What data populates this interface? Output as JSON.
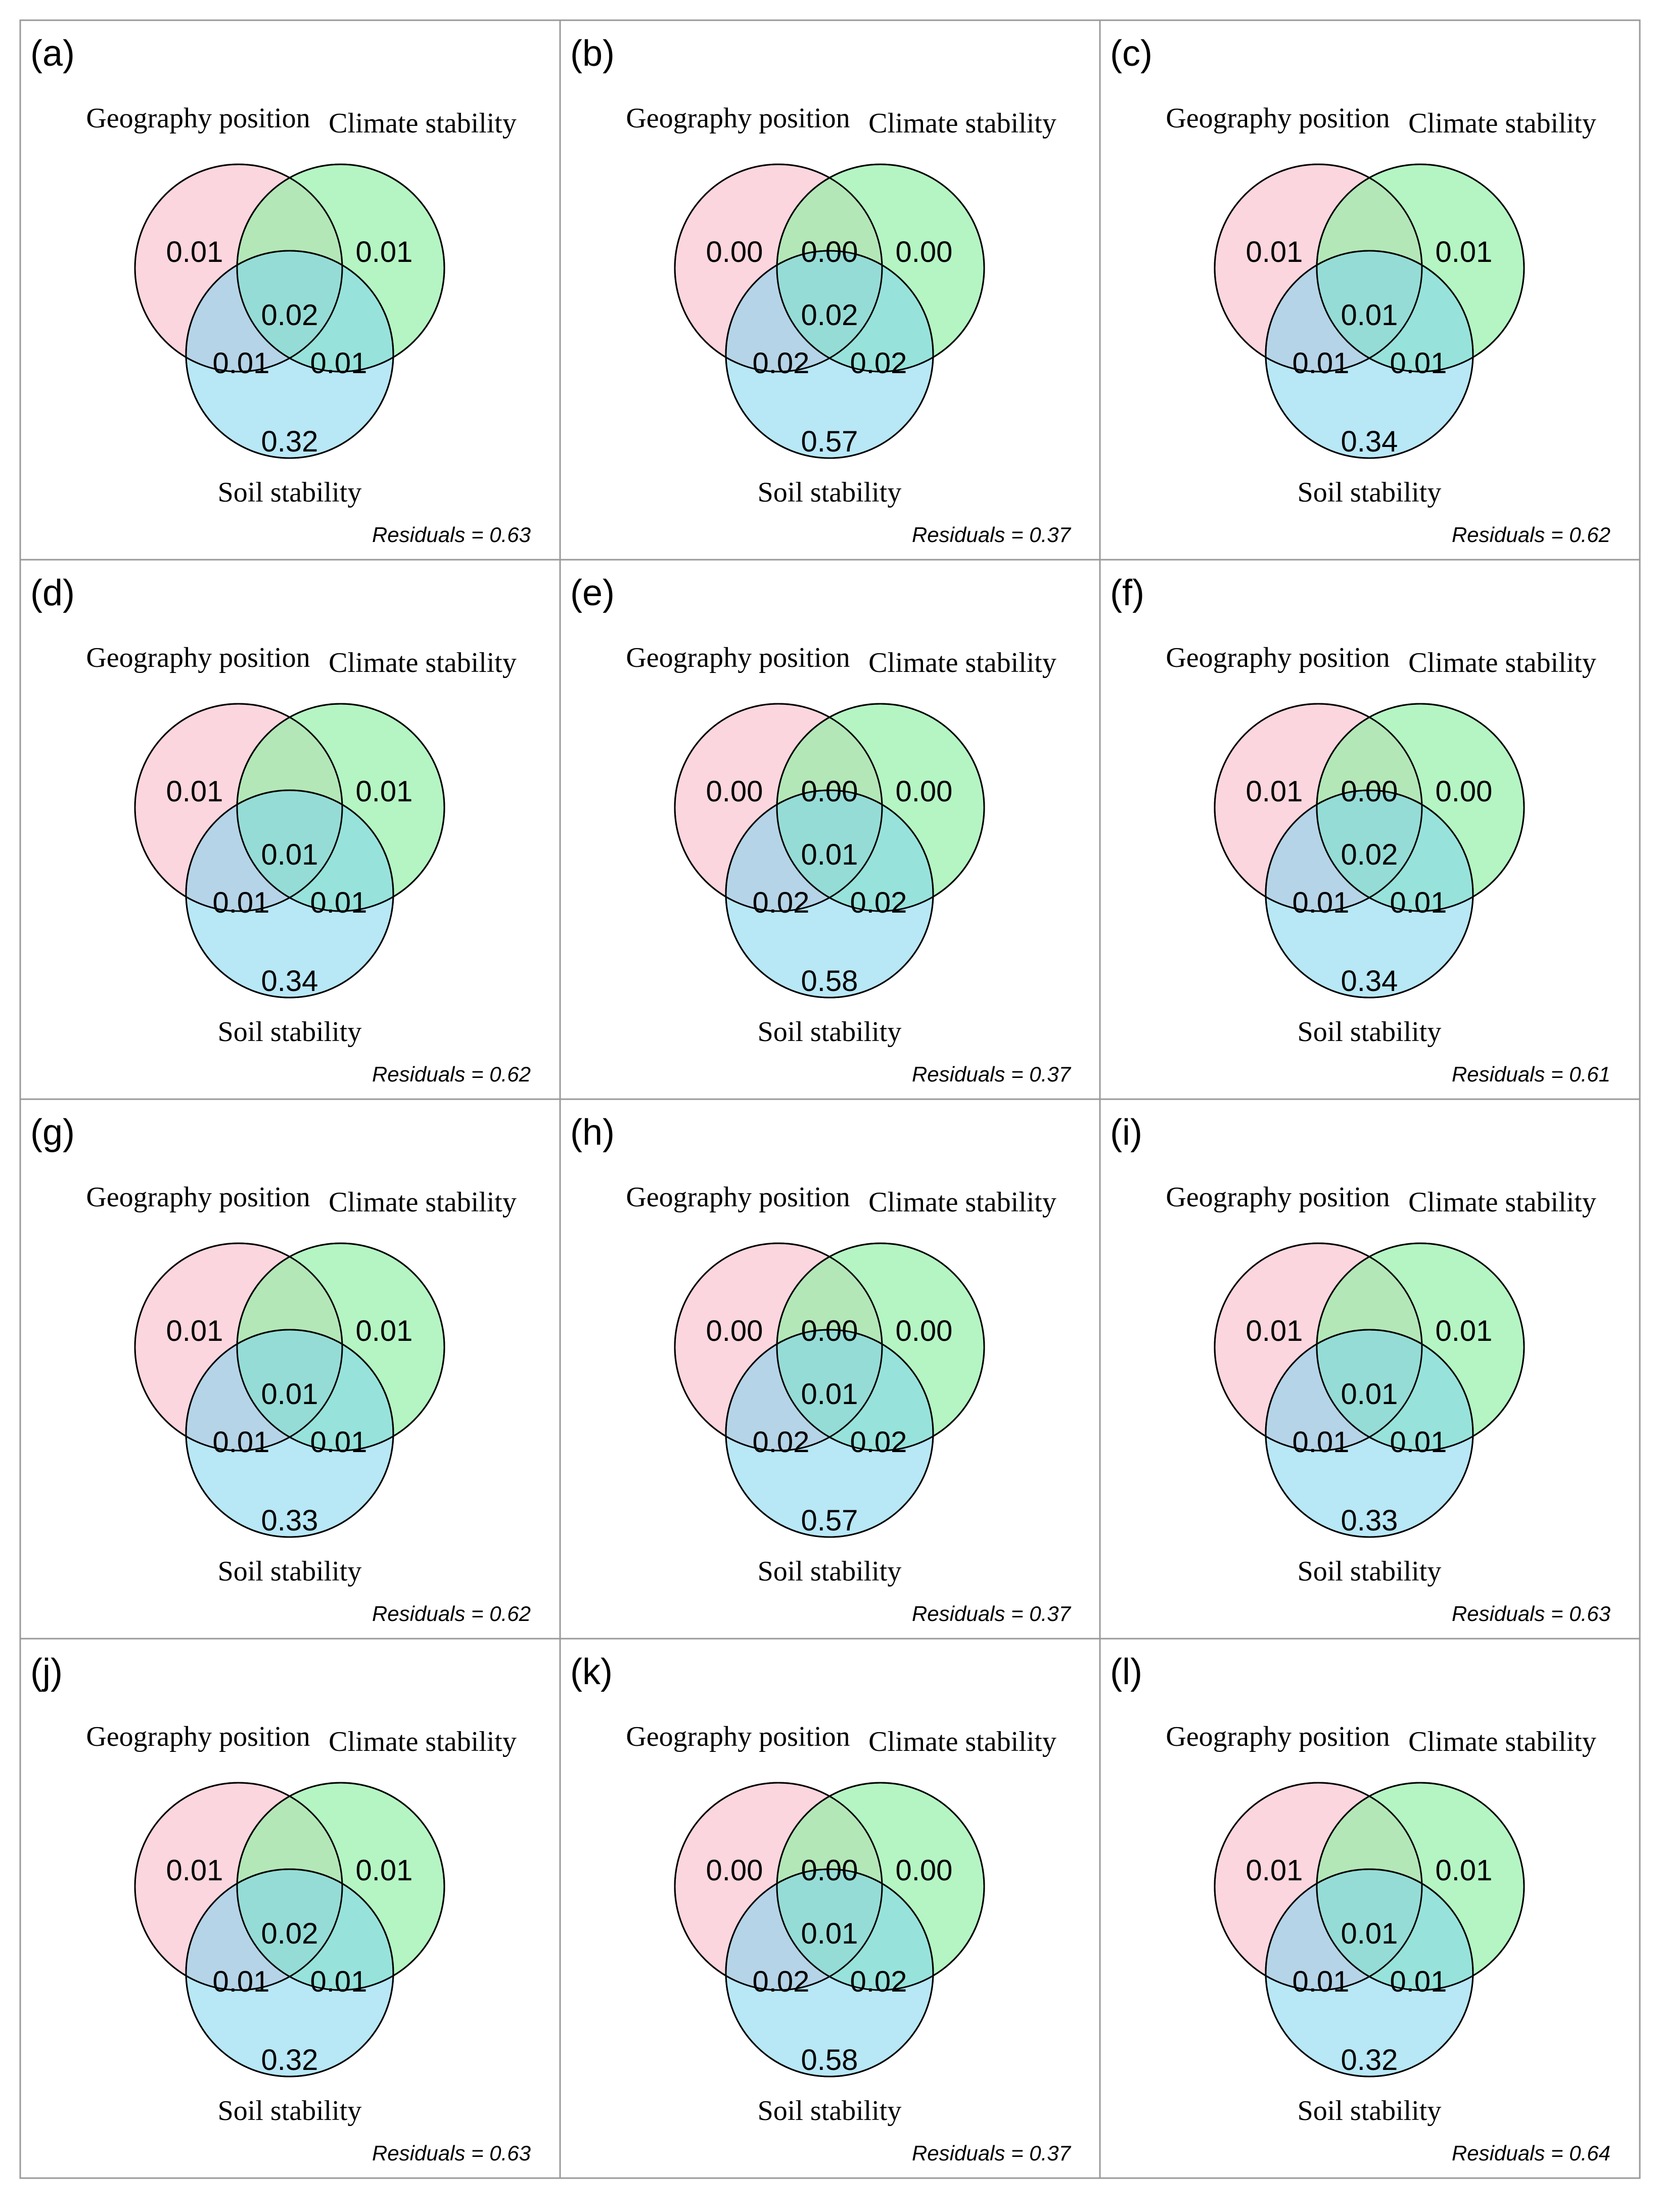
{
  "figure": {
    "set_labels": {
      "geography": "Geography position",
      "climate": "Climate stability",
      "soil": "Soil stability"
    },
    "residuals_prefix": "Residuals = ",
    "colors": {
      "geography": "#f9c8d3",
      "climate": "#8ef0a3",
      "soil": "#7dd3ee",
      "outline": "#000000",
      "grid": "#999999"
    },
    "panels": [
      {
        "label": "(a)",
        "residuals": "0.63",
        "geo_only": "0.01",
        "climate_only": "0.01",
        "geo_climate": "",
        "all_three": "0.02",
        "geo_soil": "0.01",
        "climate_soil": "0.01",
        "soil_only": "0.32"
      },
      {
        "label": "(b)",
        "residuals": "0.37",
        "geo_only": "0.00",
        "climate_only": "0.00",
        "geo_climate": "0.00",
        "all_three": "0.02",
        "geo_soil": "0.02",
        "climate_soil": "0.02",
        "soil_only": "0.57"
      },
      {
        "label": "(c)",
        "residuals": "0.62",
        "geo_only": "0.01",
        "climate_only": "0.01",
        "geo_climate": "",
        "all_three": "0.01",
        "geo_soil": "0.01",
        "climate_soil": "0.01",
        "soil_only": "0.34"
      },
      {
        "label": "(d)",
        "residuals": "0.62",
        "geo_only": "0.01",
        "climate_only": "0.01",
        "geo_climate": "",
        "all_three": "0.01",
        "geo_soil": "0.01",
        "climate_soil": "0.01",
        "soil_only": "0.34"
      },
      {
        "label": "(e)",
        "residuals": "0.37",
        "geo_only": "0.00",
        "climate_only": "0.00",
        "geo_climate": "0.00",
        "all_three": "0.01",
        "geo_soil": "0.02",
        "climate_soil": "0.02",
        "soil_only": "0.58"
      },
      {
        "label": "(f)",
        "residuals": "0.61",
        "geo_only": "0.01",
        "climate_only": "0.00",
        "geo_climate": "0.00",
        "all_three": "0.02",
        "geo_soil": "0.01",
        "climate_soil": "0.01",
        "soil_only": "0.34"
      },
      {
        "label": "(g)",
        "residuals": "0.62",
        "geo_only": "0.01",
        "climate_only": "0.01",
        "geo_climate": "",
        "all_three": "0.01",
        "geo_soil": "0.01",
        "climate_soil": "0.01",
        "soil_only": "0.33"
      },
      {
        "label": "(h)",
        "residuals": "0.37",
        "geo_only": "0.00",
        "climate_only": "0.00",
        "geo_climate": "0.00",
        "all_three": "0.01",
        "geo_soil": "0.02",
        "climate_soil": "0.02",
        "soil_only": "0.57"
      },
      {
        "label": "(i)",
        "residuals": "0.63",
        "geo_only": "0.01",
        "climate_only": "0.01",
        "geo_climate": "",
        "all_three": "0.01",
        "geo_soil": "0.01",
        "climate_soil": "0.01",
        "soil_only": "0.33"
      },
      {
        "label": "(j)",
        "residuals": "0.63",
        "geo_only": "0.01",
        "climate_only": "0.01",
        "geo_climate": "",
        "all_three": "0.02",
        "geo_soil": "0.01",
        "climate_soil": "0.01",
        "soil_only": "0.32"
      },
      {
        "label": "(k)",
        "residuals": "0.37",
        "geo_only": "0.00",
        "climate_only": "0.00",
        "geo_climate": "0.00",
        "all_three": "0.01",
        "geo_soil": "0.02",
        "climate_soil": "0.02",
        "soil_only": "0.58"
      },
      {
        "label": "(l)",
        "residuals": "0.64",
        "geo_only": "0.01",
        "climate_only": "0.01",
        "geo_climate": "",
        "all_three": "0.01",
        "geo_soil": "0.01",
        "climate_soil": "0.01",
        "soil_only": "0.32"
      }
    ]
  }
}
